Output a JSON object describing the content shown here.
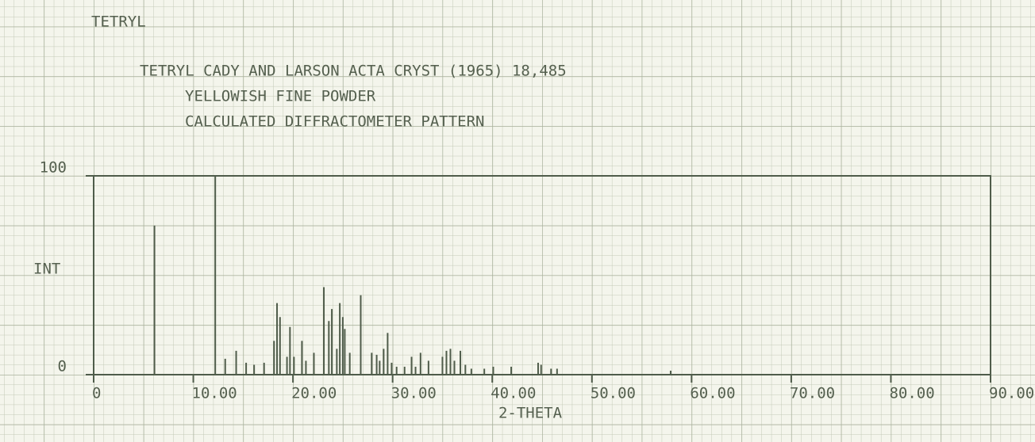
{
  "chart_data": {
    "type": "bar",
    "title": "TETRYL",
    "subtitle": [
      "TETRYL CADY AND LARSON ACTA CRYST (1965) 18,485",
      "YELLOWISH FINE POWDER",
      "CALCULATED DIFFRACTOMETER PATTERN"
    ],
    "x_label": "2-THETA",
    "y_label": "INT",
    "x": [
      6.1,
      12.2,
      13.2,
      14.3,
      15.3,
      16.1,
      17.1,
      18.1,
      18.4,
      18.7,
      19.4,
      19.7,
      20.1,
      20.9,
      21.3,
      22.1,
      23.1,
      23.6,
      23.9,
      24.4,
      24.7,
      25.0,
      25.2,
      25.7,
      26.8,
      27.9,
      28.4,
      28.7,
      29.1,
      29.5,
      29.9,
      30.4,
      31.2,
      31.9,
      32.3,
      32.8,
      33.6,
      35.0,
      35.4,
      35.8,
      36.2,
      36.8,
      37.3,
      37.9,
      39.2,
      40.1,
      41.9,
      44.6,
      44.9,
      45.9,
      46.5,
      57.9
    ],
    "values": [
      75,
      100,
      8,
      12,
      6,
      5,
      6,
      17,
      36,
      29,
      9,
      24,
      9,
      17,
      7,
      11,
      44,
      27,
      33,
      13,
      36,
      29,
      23,
      11,
      40,
      11,
      10,
      7,
      13,
      21,
      6,
      4,
      4,
      9,
      4,
      11,
      7,
      9,
      12,
      13,
      7,
      12,
      5,
      3,
      3,
      4,
      4,
      6,
      5,
      3,
      3,
      2
    ],
    "color": "#4f5c4a",
    "xlim": [
      0,
      90
    ],
    "ylim": [
      0,
      100
    ],
    "xticks": [
      0,
      {
        "value": 10,
        "label": "10.00"
      },
      {
        "value": 20,
        "label": "20.00"
      },
      {
        "value": 30,
        "label": "30.00"
      },
      {
        "value": 40,
        "label": "40.00"
      },
      {
        "value": 50,
        "label": "50.00"
      },
      {
        "value": 60,
        "label": "60.00"
      },
      {
        "value": 70,
        "label": "70.00"
      },
      {
        "value": 80,
        "label": "80.00"
      },
      {
        "value": 90,
        "label": "90.00"
      }
    ],
    "yticks": [
      0,
      100
    ]
  }
}
